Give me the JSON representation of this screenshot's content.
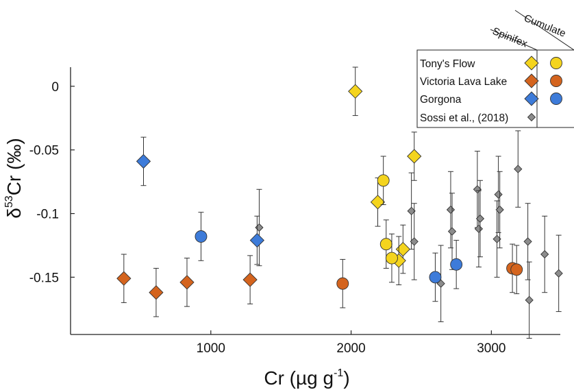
{
  "chart_data": {
    "type": "scatter",
    "title": "",
    "xlabel": {
      "prefix": "Cr (µg g",
      "sup": "-1",
      "suffix": ")"
    },
    "ylabel": {
      "prefix": "δ",
      "sup": "53",
      "suffix": "Cr (‰)"
    },
    "xlim": [
      0,
      3550
    ],
    "ylim": [
      -0.195,
      0.015
    ],
    "xticks": [
      1000,
      2000,
      3000
    ],
    "xtick_labels": [
      "1000",
      "2000",
      "3000"
    ],
    "yticks": [
      0,
      -0.05,
      -0.1,
      -0.15
    ],
    "ytick_labels": [
      "0",
      "-0.05",
      "-0.1",
      "-0.15"
    ],
    "grid": false,
    "legend": {
      "placement": "top-right",
      "column_headers": [
        "Spinifex",
        "Cumulate"
      ],
      "entries": [
        "Tony's Flow",
        "Victoria Lava Lake",
        "Gorgona",
        "Sossi et al., (2018)"
      ]
    },
    "series": [
      {
        "name": "Tony's Flow",
        "subtype": "Spinifex",
        "marker": "diamond",
        "color": "#F4D41E",
        "points": [
          {
            "x": 2030,
            "y": -0.004,
            "err": 0.019
          },
          {
            "x": 2450,
            "y": -0.055,
            "err": 0.019
          },
          {
            "x": 2190,
            "y": -0.091,
            "err": 0.019
          },
          {
            "x": 2370,
            "y": -0.128,
            "err": 0.019
          },
          {
            "x": 2340,
            "y": -0.137,
            "err": 0.019
          }
        ]
      },
      {
        "name": "Tony's Flow",
        "subtype": "Cumulate",
        "marker": "circle",
        "color": "#F4D41E",
        "points": [
          {
            "x": 2230,
            "y": -0.074,
            "err": 0.019
          },
          {
            "x": 2250,
            "y": -0.124,
            "err": 0.019
          },
          {
            "x": 2290,
            "y": -0.135,
            "err": 0.019
          }
        ]
      },
      {
        "name": "Victoria Lava Lake",
        "subtype": "Spinifex",
        "marker": "diamond",
        "color": "#D4641E",
        "points": [
          {
            "x": 380,
            "y": -0.151,
            "err": 0.019
          },
          {
            "x": 610,
            "y": -0.162,
            "err": 0.019
          },
          {
            "x": 830,
            "y": -0.154,
            "err": 0.019
          },
          {
            "x": 1280,
            "y": -0.152,
            "err": 0.019
          }
        ]
      },
      {
        "name": "Victoria Lava Lake",
        "subtype": "Cumulate",
        "marker": "circle",
        "color": "#D4641E",
        "points": [
          {
            "x": 1940,
            "y": -0.155,
            "err": 0.019
          },
          {
            "x": 3150,
            "y": -0.143,
            "err": 0.019
          },
          {
            "x": 3180,
            "y": -0.144,
            "err": 0.019
          }
        ]
      },
      {
        "name": "Gorgona",
        "subtype": "Spinifex",
        "marker": "diamond",
        "color": "#3D7BD9",
        "points": [
          {
            "x": 520,
            "y": -0.059,
            "err": 0.019
          },
          {
            "x": 1330,
            "y": -0.121,
            "err": 0.019
          }
        ]
      },
      {
        "name": "Gorgona",
        "subtype": "Cumulate",
        "marker": "circle",
        "color": "#3D7BD9",
        "points": [
          {
            "x": 930,
            "y": -0.118,
            "err": 0.019
          },
          {
            "x": 2600,
            "y": -0.15,
            "err": 0.019
          },
          {
            "x": 2750,
            "y": -0.14,
            "err": 0.019
          }
        ]
      },
      {
        "name": "Sossi et al., (2018)",
        "subtype": "",
        "marker": "small-diamond",
        "color": "#8C8C8C",
        "points": [
          {
            "x": 1345,
            "y": -0.111,
            "err": 0.03
          },
          {
            "x": 2430,
            "y": -0.098,
            "err": 0.03
          },
          {
            "x": 2450,
            "y": -0.122,
            "err": 0.03
          },
          {
            "x": 2640,
            "y": -0.155,
            "err": 0.03
          },
          {
            "x": 2710,
            "y": -0.097,
            "err": 0.03
          },
          {
            "x": 2720,
            "y": -0.114,
            "err": 0.03
          },
          {
            "x": 2900,
            "y": -0.081,
            "err": 0.03
          },
          {
            "x": 2910,
            "y": -0.112,
            "err": 0.03
          },
          {
            "x": 2920,
            "y": -0.104,
            "err": 0.03
          },
          {
            "x": 3040,
            "y": -0.12,
            "err": 0.03
          },
          {
            "x": 3050,
            "y": -0.085,
            "err": 0.03
          },
          {
            "x": 3060,
            "y": -0.097,
            "err": 0.03
          },
          {
            "x": 3190,
            "y": -0.065,
            "err": 0.03
          },
          {
            "x": 3260,
            "y": -0.122,
            "err": 0.03
          },
          {
            "x": 3270,
            "y": -0.168,
            "err": 0.03
          },
          {
            "x": 3380,
            "y": -0.132,
            "err": 0.03
          },
          {
            "x": 3480,
            "y": -0.147,
            "err": 0.03
          }
        ]
      }
    ]
  }
}
